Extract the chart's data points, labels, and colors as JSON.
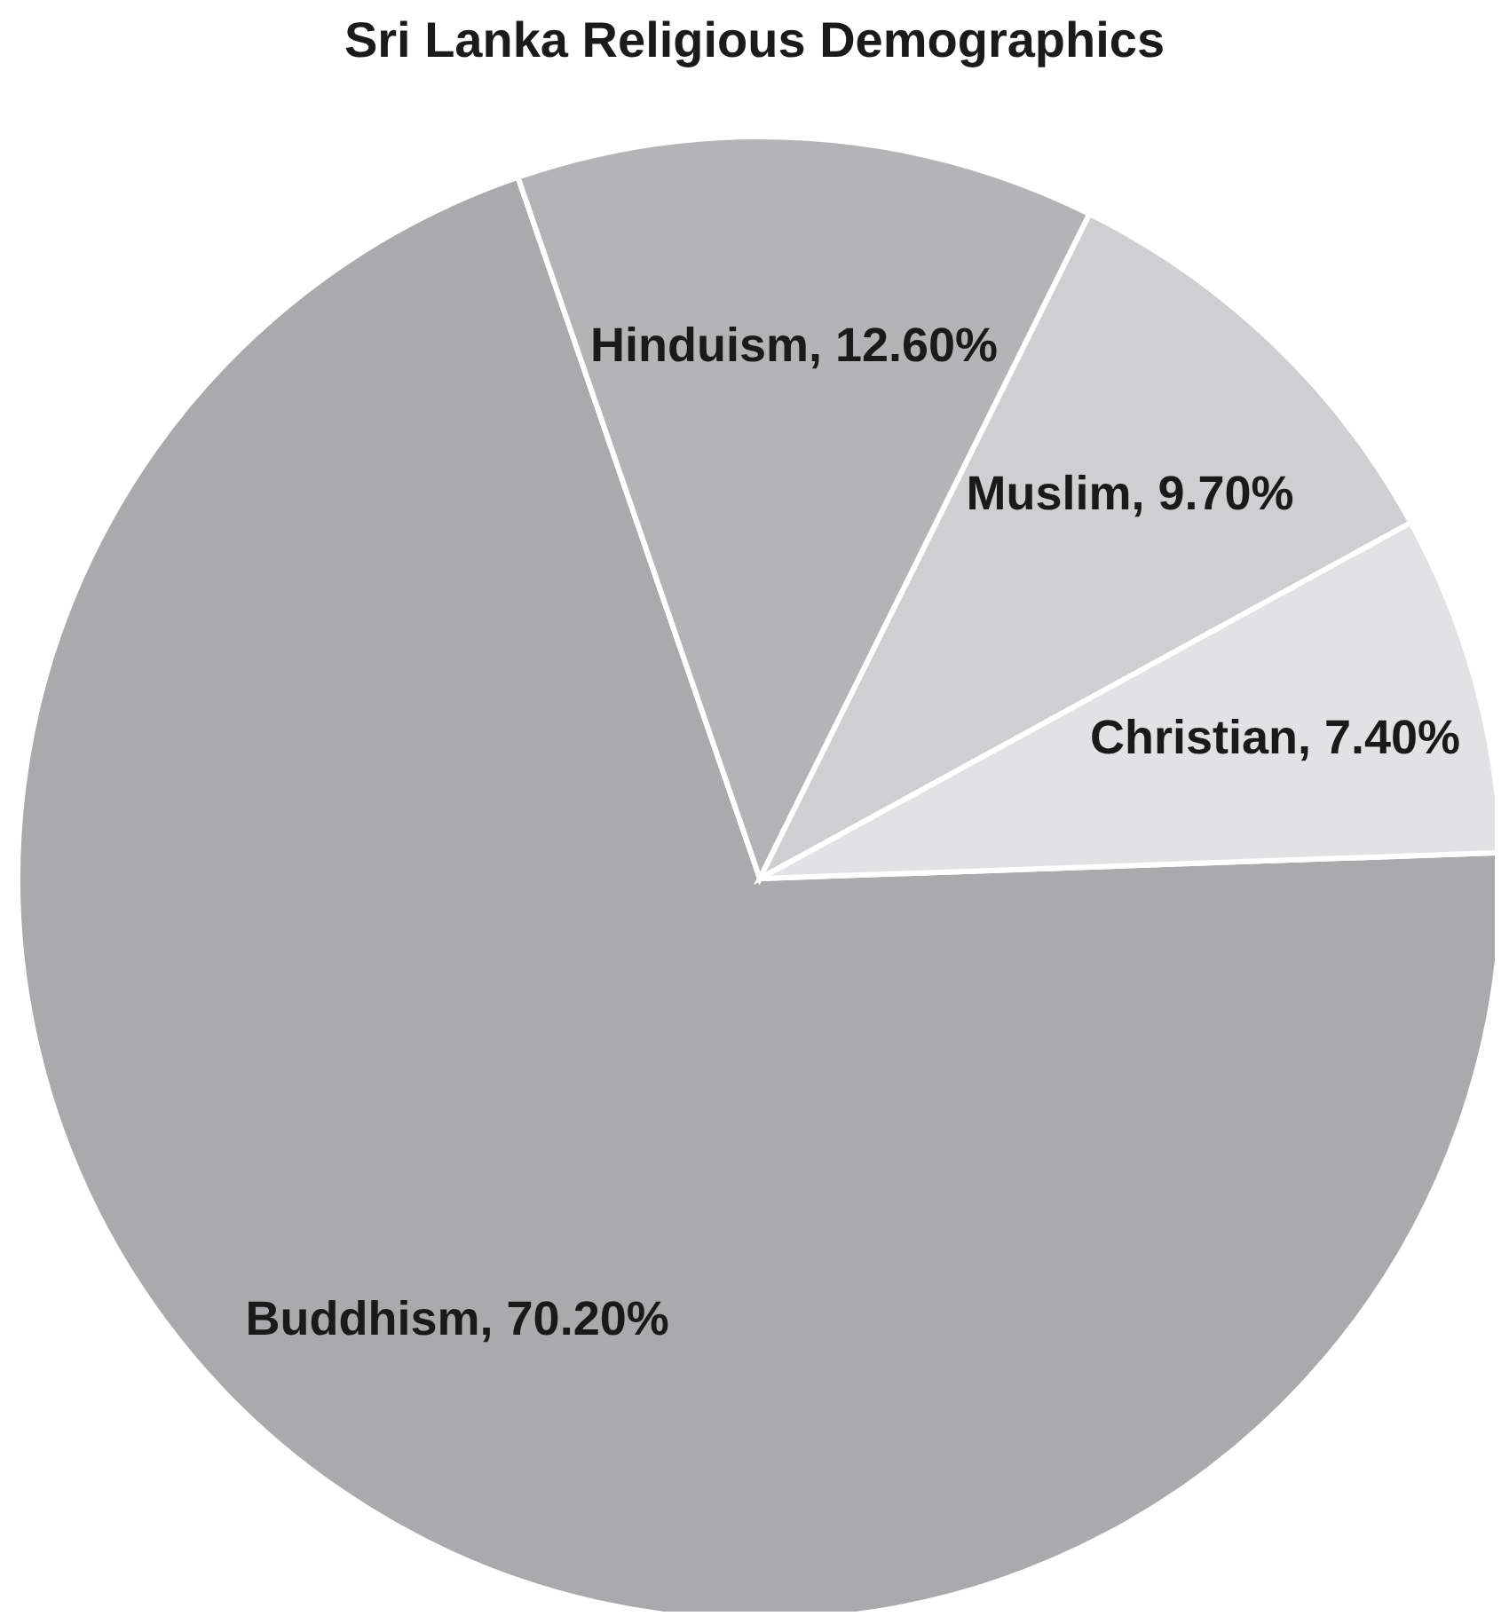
{
  "chart_data": {
    "type": "pie",
    "title": "Sri Lanka Religious Demographics",
    "categories": [
      "Buddhism",
      "Hinduism",
      "Muslim",
      "Christian"
    ],
    "values": [
      70.2,
      12.6,
      9.7,
      7.4
    ],
    "value_labels": [
      "70.20%",
      "12.60%",
      "9.70%",
      "7.40%"
    ],
    "colors": [
      "#aaaaac",
      "#b4b4b6",
      "#cfcfd1",
      "#e2e2e4"
    ],
    "legend": false
  }
}
